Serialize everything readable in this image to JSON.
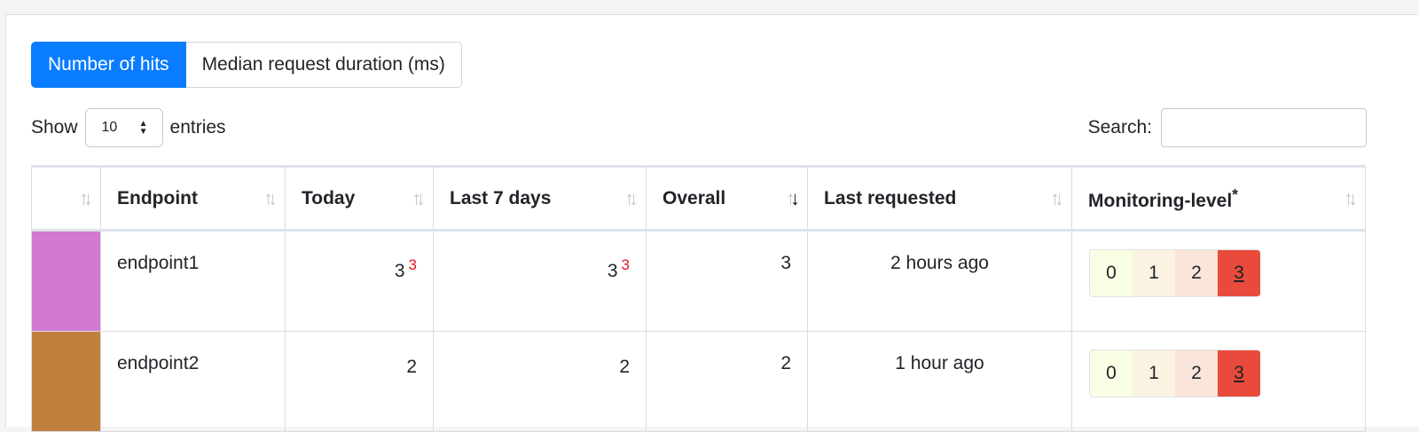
{
  "toggles": {
    "hits_label": "Number of hits",
    "duration_label": "Median request duration (ms)"
  },
  "entries": {
    "show_label": "Show",
    "count_value": "10",
    "entries_label": "entries"
  },
  "search": {
    "label": "Search:",
    "value": "",
    "placeholder": ""
  },
  "table": {
    "headers": {
      "color": "",
      "endpoint": "Endpoint",
      "today": "Today",
      "last7": "Last 7 days",
      "overall": "Overall",
      "last_requested": "Last requested",
      "monitoring": "Monitoring-level",
      "monitoring_mark": "*"
    },
    "rows": [
      {
        "color": "#d17ad0",
        "endpoint": "endpoint1",
        "today": "3",
        "today_new": "3",
        "last7": "3",
        "last7_new": "3",
        "overall": "3",
        "last_requested": "2 hours ago",
        "levels": [
          "0",
          "1",
          "2",
          "3"
        ],
        "selected_level": "3"
      },
      {
        "color": "#c0813f",
        "endpoint": "endpoint2",
        "today": "2",
        "today_new": "",
        "last7": "2",
        "last7_new": "",
        "overall": "2",
        "last_requested": "1 hour ago",
        "levels": [
          "0",
          "1",
          "2",
          "3"
        ],
        "selected_level": "3"
      }
    ]
  },
  "colors": {
    "accent": "#0a7cff",
    "level_0": "#fafee4",
    "level_1": "#fbf3e2",
    "level_2": "#f9e5d9",
    "level_3": "#e84b3c",
    "new_hits": "#e8141c"
  },
  "icons": {
    "sort": "sort-arrows-icon",
    "sort_active": "sort-descending-icon",
    "select": "select-arrows-icon"
  }
}
